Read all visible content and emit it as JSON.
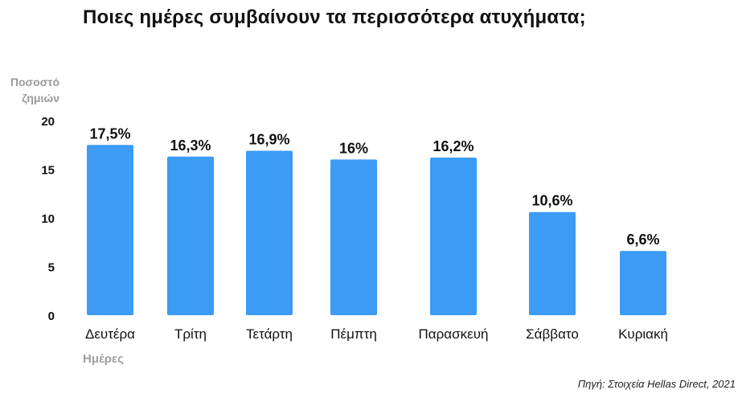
{
  "chart_data": {
    "type": "bar",
    "title": "Ποιες ημέρες συμβαίνουν τα περισσότερα ατυχήματα;",
    "ylabel_lines": [
      "Ποσοστό",
      "ζημιών"
    ],
    "xlabel": "Ημέρες",
    "categories": [
      "Δευτέρα",
      "Τρίτη",
      "Τετάρτη",
      "Πέμπτη",
      "Παρασκευή",
      "Σάββατο",
      "Κυριακή"
    ],
    "values": [
      17.5,
      16.3,
      16.9,
      16,
      16.2,
      10.6,
      6.6
    ],
    "data_labels": [
      "17,5%",
      "16,3%",
      "16,9%",
      "16%",
      "16,2%",
      "10,6%",
      "6,6%"
    ],
    "ylim": [
      0,
      20
    ],
    "yticks": [
      0,
      5,
      10,
      15,
      20
    ],
    "grid": false,
    "bar_color": "#3b9bf5",
    "source": "Πηγή: Στοιχεία Hellas Direct, 2021"
  }
}
